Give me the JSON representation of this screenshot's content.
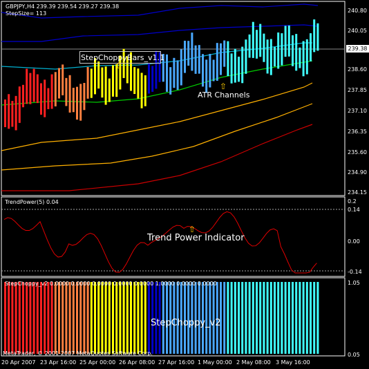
{
  "main": {
    "symbol_label": "GBPJPY,H4  239.39 239.54 239.27 239.38",
    "stepsize_label": "StepSize= 113",
    "current_price": "239.38",
    "price_ticks": [
      "240.80",
      "240.05",
      "239.38",
      "238.60",
      "237.85",
      "237.10",
      "236.35",
      "235.60",
      "234.90",
      "234.15"
    ],
    "annotations": {
      "stepchoppy_bars": "StepChoppyBars_v1.1",
      "atr_channels": "ATR Channels"
    }
  },
  "trend_power": {
    "label": "TrendPower(5) 0.04",
    "ticks": [
      "0.2",
      "0.14",
      "0.00",
      "-0.14"
    ],
    "annotation": "Trend Power Indicator"
  },
  "step_choppy": {
    "label": "StepChoppy_v2 0.0000 0.0000 0.0000 0.0000 0.0000 1.0000 0.0000 0.0000",
    "ticks": [
      "1.05",
      "0.05"
    ],
    "annotation": "StepChoppy_v2"
  },
  "footer": {
    "copyright": "MetaTrader, © 2001-2007 MetaQuotes Software Corp.",
    "dates": [
      "20 Apr 2007",
      "23 Apr 16:00",
      "25 Apr 00:00",
      "26 Apr 08:00",
      "27 Apr 16:00",
      "1 May 00:00",
      "2 May 08:00",
      "3 May 16:00"
    ]
  },
  "colors": {
    "background": "#000000",
    "red": "#ff2020",
    "orange": "#ff8040",
    "yellow": "#ffff00",
    "blue": "#0000cc",
    "lightblue": "#4aa8ff",
    "cyan": "#40ffff",
    "green": "#00cc00",
    "gold": "#ffb000",
    "darkred": "#cc0000",
    "cyanline": "#00b0d0"
  }
}
